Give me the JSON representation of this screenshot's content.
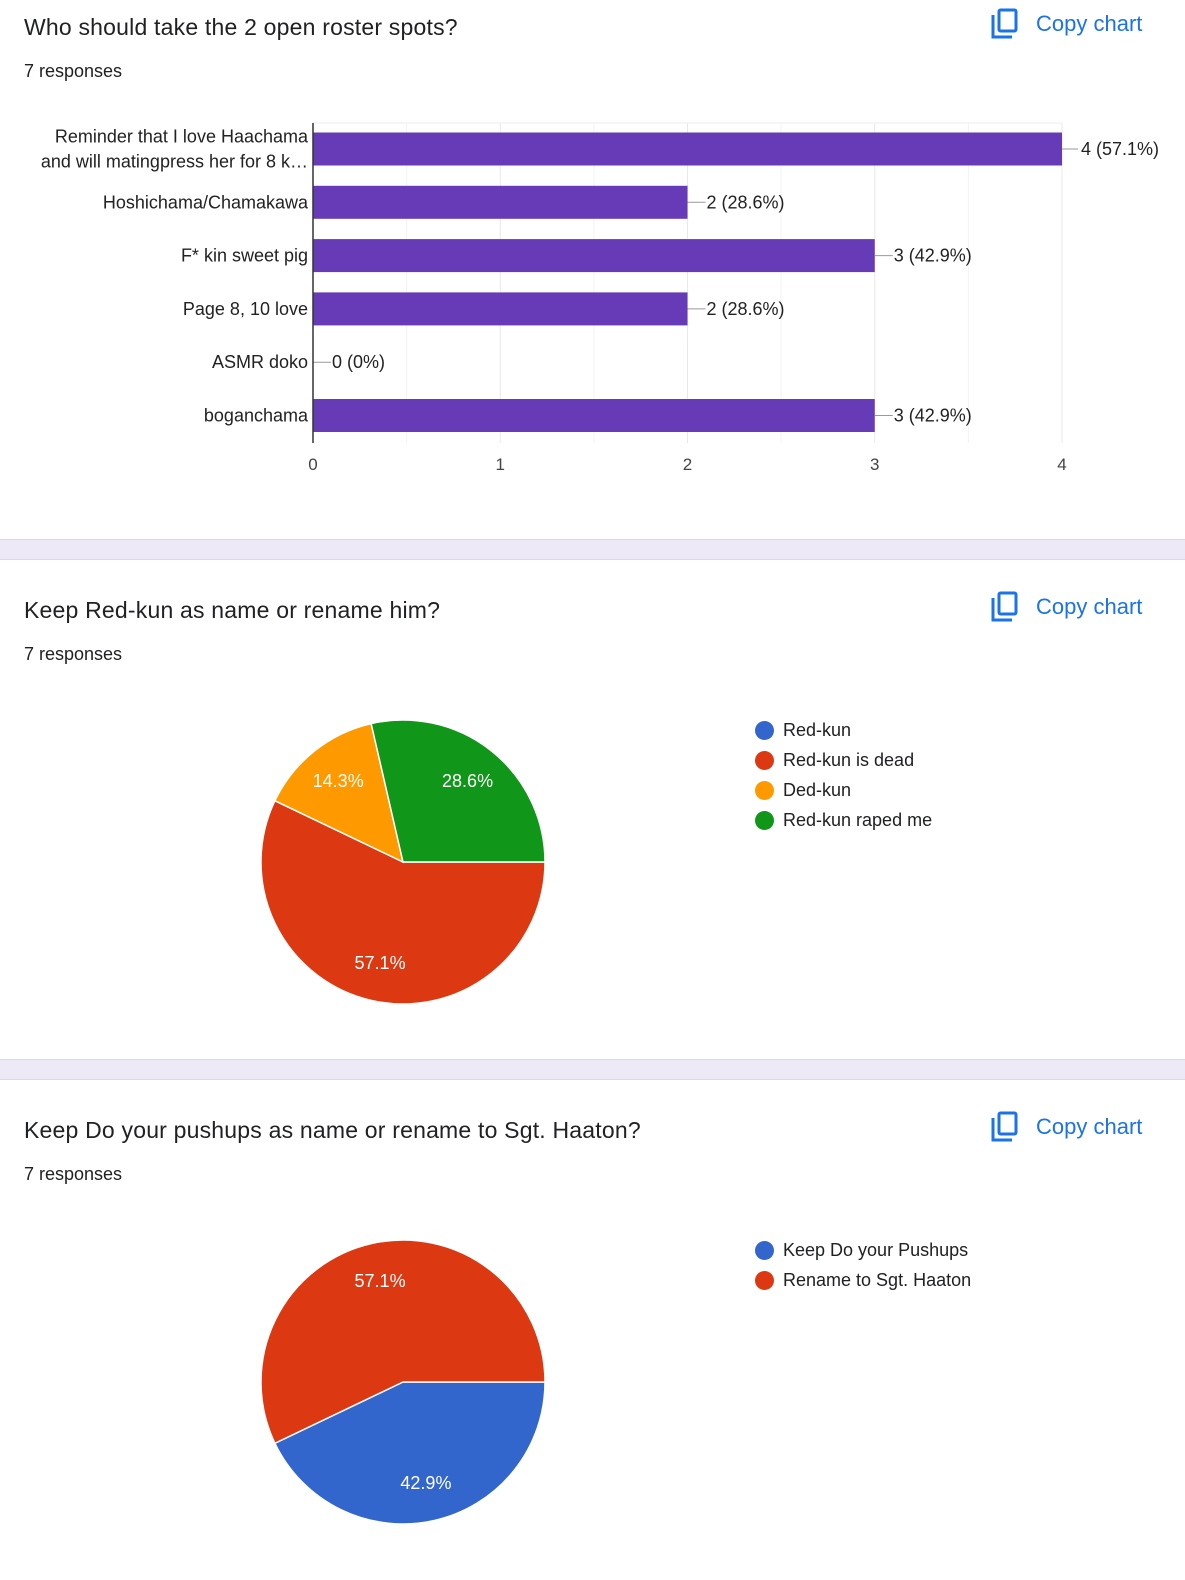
{
  "copy_label": "Copy chart",
  "chart_data": [
    {
      "type": "bar",
      "title": "Who should take the 2 open roster spots?",
      "responses": "7 responses",
      "categories": [
        [
          "Reminder that I love Haachama",
          "and will matingpress her for 8 k…"
        ],
        [
          "Hoshichama/Chamakawa"
        ],
        [
          "F* kin sweet pig"
        ],
        [
          "Page 8, 10 love"
        ],
        [
          "ASMR doko"
        ],
        [
          "boganchama"
        ]
      ],
      "values": [
        4,
        2,
        3,
        2,
        0,
        3
      ],
      "data_labels": [
        "4 (57.1%)",
        "2 (28.6%)",
        "3 (42.9%)",
        "2 (28.6%)",
        "0 (0%)",
        "3 (42.9%)"
      ],
      "xlim": [
        0,
        4
      ],
      "ticks": [
        "0",
        "1",
        "2",
        "3",
        "4"
      ],
      "color": "#673ab7"
    },
    {
      "type": "pie",
      "title": "Keep Red-kun as name or rename him?",
      "responses": "7 responses",
      "labels": [
        "Red-kun",
        "Red-kun is dead",
        "Ded-kun",
        "Red-kun raped me"
      ],
      "values": [
        0,
        57.1,
        14.3,
        28.6
      ],
      "data_labels": [
        "",
        "57.1%",
        "14.3%",
        "28.6%"
      ],
      "colors": [
        "#3366cc",
        "#dc3912",
        "#ff9900",
        "#109618"
      ],
      "legend": "right"
    },
    {
      "type": "pie",
      "title": "Keep Do your pushups as name or rename to Sgt. Haaton?",
      "responses": "7 responses",
      "labels": [
        "Keep Do your Pushups",
        "Rename to Sgt. Haaton"
      ],
      "values": [
        42.9,
        57.1
      ],
      "data_labels": [
        "42.9%",
        "57.1%"
      ],
      "colors": [
        "#3366cc",
        "#dc3912"
      ],
      "legend": "right"
    }
  ]
}
